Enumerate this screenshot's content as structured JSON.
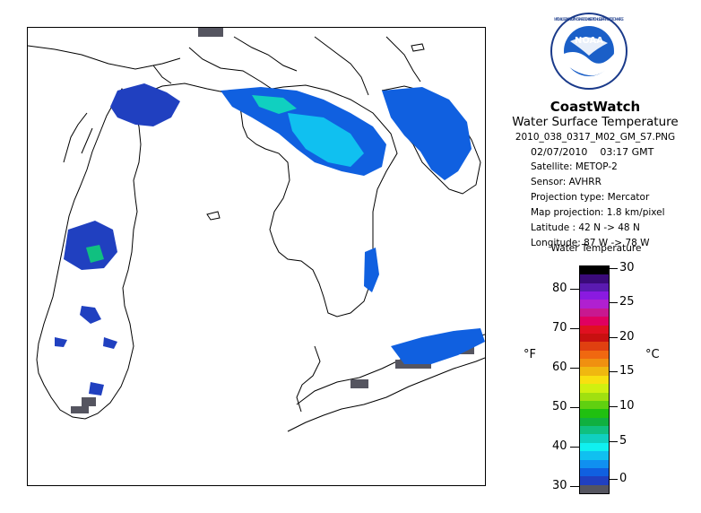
{
  "header": {
    "brand": "CoastWatch",
    "subtitle": "Water Surface Temperature",
    "filename": "2010_038_0317_M02_GM_S7.PNG",
    "date": "02/07/2010",
    "time": "03:17 GMT"
  },
  "metadata": {
    "satellite": "Satellite: METOP-2",
    "sensor": "Sensor: AVHRR",
    "projection_type": "Projection type:  Mercator",
    "map_projection": "Map projection: 1.8 km/pixel",
    "latitude": "Latitude : 42 N -> 48 N",
    "longitude": "Longitude: 87 W -> 78 W"
  },
  "logo": {
    "text": "NOAA",
    "ring_text": "NATIONAL OCEANIC AND ATMOSPHERIC ADMINISTRATION • U.S. DEPARTMENT OF COMMERCE"
  },
  "legend": {
    "title": "Water Temperature",
    "unit_f": "°F",
    "unit_c": "°C",
    "f_ticks": [
      "80",
      "70",
      "60",
      "50",
      "40",
      "30"
    ],
    "c_ticks": [
      "30",
      "25",
      "20",
      "15",
      "10",
      "5",
      "0"
    ],
    "colors": [
      "#000000",
      "#3a0a7a",
      "#5a1ab0",
      "#8a1ae0",
      "#b020d0",
      "#c81890",
      "#e00060",
      "#e01020",
      "#c81010",
      "#e04010",
      "#f06810",
      "#f09010",
      "#f0b810",
      "#f8e010",
      "#d0f010",
      "#a0e010",
      "#60d010",
      "#20c010",
      "#10b040",
      "#10c080",
      "#10d0c0",
      "#10f0f0",
      "#10c0f0",
      "#1090f0",
      "#1060e0",
      "#2040c0",
      "#555560"
    ]
  }
}
